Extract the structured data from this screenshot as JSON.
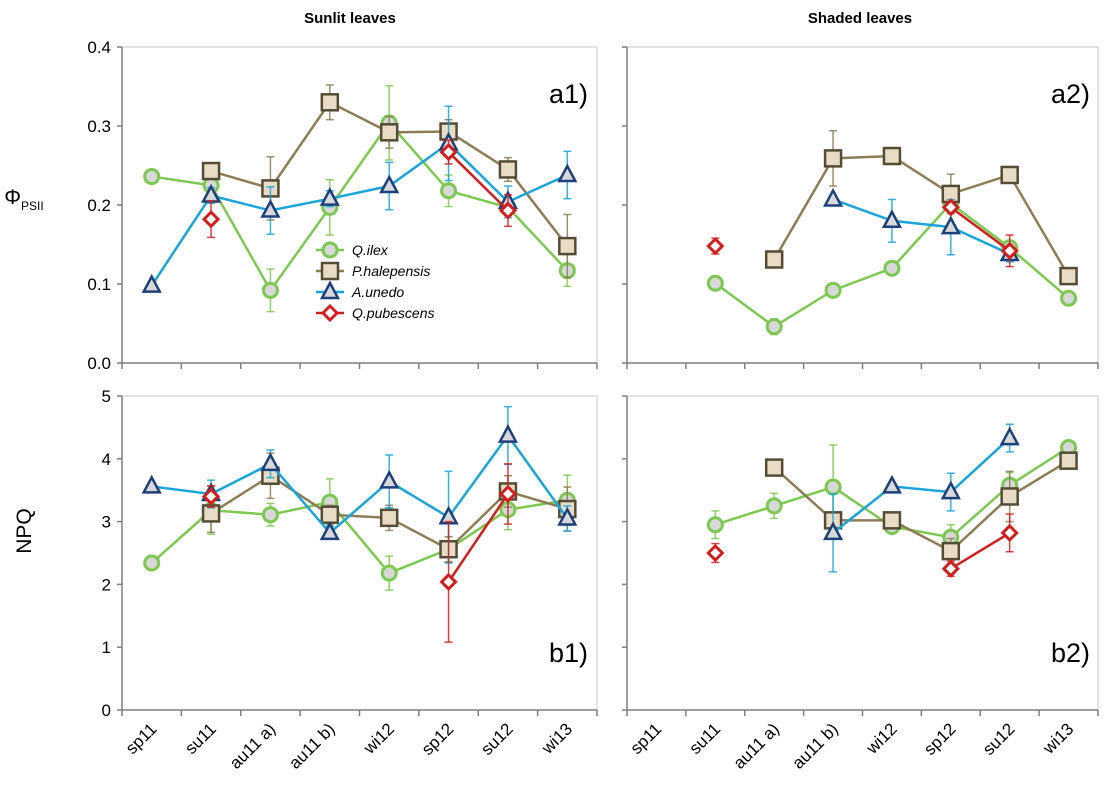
{
  "column_titles": [
    "Sunlit leaves",
    "Shaded leaves"
  ],
  "y_labels": {
    "top_main": "Φ",
    "top_sub": "PSII",
    "bottom": "NPQ"
  },
  "legend": {
    "entries": [
      {
        "name": "Q.ilex",
        "color": "#7dc850",
        "marker": "circle"
      },
      {
        "name": "P.halepensis",
        "color": "#8c7d55",
        "marker": "square"
      },
      {
        "name": "A.unedo",
        "color": "#1aa4d9",
        "marker": "triangle"
      },
      {
        "name": "Q.pubescens",
        "color": "#d11f1f",
        "marker": "diamond"
      }
    ]
  },
  "chart_data": [
    {
      "type": "line",
      "panel": "a1)",
      "title": "Sunlit leaves",
      "ylabel": "ΦPSII",
      "ylim": [
        0,
        0.4
      ],
      "yticks": [
        "0.0",
        "0.1",
        "0.2",
        "0.3",
        "0.4"
      ],
      "categories": [
        "sp11",
        "su11",
        "au11 a)",
        "au11 b)",
        "wi12",
        "sp12",
        "su12",
        "wi13"
      ],
      "series": [
        {
          "name": "Q.ilex",
          "values": [
            0.236,
            0.225,
            0.092,
            0.197,
            0.304,
            0.218,
            0.197,
            0.117
          ],
          "errors": [
            0,
            0,
            0.027,
            0.035,
            0.047,
            0.02,
            0.01,
            0.02
          ]
        },
        {
          "name": "P.halepensis",
          "values": [
            null,
            0.243,
            0.221,
            0.33,
            0.292,
            0.293,
            0.245,
            0.148
          ],
          "errors": [
            0,
            0.01,
            0.04,
            0.022,
            0.02,
            0.015,
            0.015,
            0.04
          ]
        },
        {
          "name": "A.unedo",
          "values": [
            0.098,
            0.212,
            0.193,
            0.208,
            0.224,
            0.278,
            0.204,
            0.238
          ],
          "errors": [
            0,
            0.01,
            0.03,
            0.01,
            0.03,
            0.047,
            0.02,
            0.03
          ]
        },
        {
          "name": "Q.pubescens",
          "values": [
            null,
            0.182,
            null,
            null,
            null,
            0.267,
            0.193,
            null
          ],
          "errors": [
            0,
            0.023,
            0,
            0,
            0,
            0.015,
            0.02,
            0
          ]
        }
      ]
    },
    {
      "type": "line",
      "panel": "a2)",
      "title": "Shaded leaves",
      "ylim": [
        0,
        0.4
      ],
      "categories": [
        "sp11",
        "su11",
        "au11 a)",
        "au11 b)",
        "wi12",
        "sp12",
        "su12",
        "wi13"
      ],
      "series": [
        {
          "name": "Q.ilex",
          "values": [
            null,
            0.101,
            0.046,
            0.092,
            0.12,
            0.202,
            0.146,
            0.082
          ],
          "errors": [
            0,
            0,
            0.01,
            0,
            0,
            0,
            0,
            0
          ]
        },
        {
          "name": "P.halepensis",
          "values": [
            null,
            null,
            0.131,
            0.259,
            0.262,
            0.214,
            0.238,
            0.11
          ],
          "errors": [
            0,
            0,
            0,
            0.035,
            0.01,
            0.025,
            0.01,
            0
          ]
        },
        {
          "name": "A.unedo",
          "values": [
            null,
            null,
            null,
            0.207,
            0.18,
            0.172,
            0.138,
            null
          ],
          "errors": [
            0,
            0,
            0,
            0,
            0.027,
            0.035,
            0.01,
            0
          ]
        },
        {
          "name": "Q.pubescens",
          "values": [
            null,
            0.148,
            null,
            null,
            null,
            0.197,
            0.142,
            null
          ],
          "errors": [
            0,
            0.01,
            0,
            0,
            0,
            0,
            0.02,
            0
          ]
        }
      ]
    },
    {
      "type": "line",
      "panel": "b1)",
      "ylabel": "NPQ",
      "ylim": [
        0,
        5
      ],
      "yticks": [
        "0",
        "1",
        "2",
        "3",
        "4",
        "5"
      ],
      "categories": [
        "sp11",
        "su11",
        "au11 a)",
        "au11 b)",
        "wi12",
        "sp12",
        "su12",
        "wi13"
      ],
      "series": [
        {
          "name": "Q.ilex",
          "values": [
            2.34,
            3.18,
            3.11,
            3.31,
            2.18,
            2.56,
            3.19,
            3.34
          ],
          "errors": [
            0,
            0.38,
            0.18,
            0.37,
            0.27,
            0.2,
            0.32,
            0.4
          ]
        },
        {
          "name": "P.halepensis",
          "values": [
            null,
            3.13,
            3.73,
            3.11,
            3.06,
            2.56,
            3.48,
            3.2
          ],
          "errors": [
            0,
            0.3,
            0.36,
            0.15,
            0.2,
            0.2,
            0.25,
            0.35
          ]
        },
        {
          "name": "A.unedo",
          "values": [
            3.56,
            3.44,
            3.92,
            2.82,
            3.64,
            3.07,
            4.37,
            3.05
          ],
          "errors": [
            0,
            0.22,
            0.22,
            0.1,
            0.42,
            0.73,
            0.46,
            0.2
          ]
        },
        {
          "name": "Q.pubescens",
          "values": [
            null,
            3.4,
            null,
            null,
            null,
            2.04,
            3.44,
            null
          ],
          "errors": [
            0,
            0.17,
            0,
            0,
            0,
            0.96,
            0.48,
            0
          ]
        }
      ]
    },
    {
      "type": "line",
      "panel": "b2)",
      "ylim": [
        0,
        5
      ],
      "categories": [
        "sp11",
        "su11",
        "au11 a)",
        "au11 b)",
        "wi12",
        "sp12",
        "su12",
        "wi13"
      ],
      "series": [
        {
          "name": "Q.ilex",
          "values": [
            null,
            2.95,
            3.25,
            3.55,
            2.92,
            2.75,
            3.58,
            4.18
          ],
          "errors": [
            0,
            0.22,
            0.2,
            0.67,
            0.08,
            0.2,
            0.2,
            0
          ]
        },
        {
          "name": "P.halepensis",
          "values": [
            null,
            null,
            3.86,
            3.02,
            3.02,
            2.53,
            3.4,
            3.97
          ],
          "errors": [
            0,
            0,
            0,
            0.12,
            0.05,
            0.2,
            0.4,
            0
          ]
        },
        {
          "name": "A.unedo",
          "values": [
            null,
            null,
            null,
            2.82,
            3.56,
            3.47,
            4.33,
            null
          ],
          "errors": [
            0,
            0,
            0,
            0.62,
            0,
            0.3,
            0.22,
            0
          ]
        },
        {
          "name": "Q.pubescens",
          "values": [
            null,
            2.5,
            null,
            null,
            null,
            2.25,
            2.82,
            null
          ],
          "errors": [
            0,
            0.15,
            0,
            0,
            0,
            0.12,
            0.3,
            0
          ]
        }
      ]
    }
  ]
}
